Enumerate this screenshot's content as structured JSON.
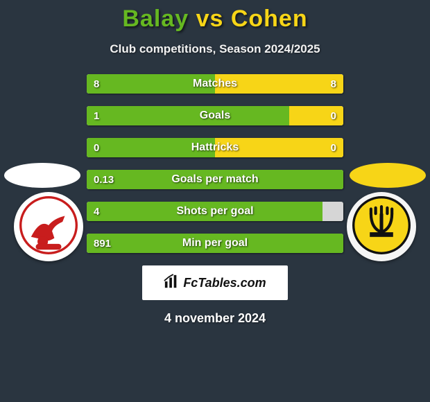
{
  "title": {
    "player1": "Balay",
    "vs": "vs",
    "player2": "Cohen",
    "player1_color": "#66b821",
    "vs_color": "#f7d517",
    "player2_color": "#f7d517"
  },
  "subtitle": "Club competitions, Season 2024/2025",
  "ovals": {
    "left_color": "#ffffff",
    "right_color": "#f7d517"
  },
  "stats": {
    "track_bg": "#d6d6d6",
    "left_color": "#66b821",
    "right_color": "#f7d517",
    "rows": [
      {
        "label": "Matches",
        "l": "8",
        "r": "8",
        "l_pct": 50,
        "r_pct": 50
      },
      {
        "label": "Goals",
        "l": "1",
        "r": "0",
        "l_pct": 79,
        "r_pct": 21
      },
      {
        "label": "Hattricks",
        "l": "0",
        "r": "0",
        "l_pct": 50,
        "r_pct": 50
      },
      {
        "label": "Goals per match",
        "l": "0.13",
        "r": "",
        "l_pct": 100,
        "r_pct": 0
      },
      {
        "label": "Shots per goal",
        "l": "4",
        "r": "",
        "l_pct": 92,
        "r_pct": 0
      },
      {
        "label": "Min per goal",
        "l": "891",
        "r": "",
        "l_pct": 100,
        "r_pct": 0
      }
    ]
  },
  "footer_brand": "FcTables.com",
  "date": "4 november 2024",
  "bg_color": "#2a3540"
}
